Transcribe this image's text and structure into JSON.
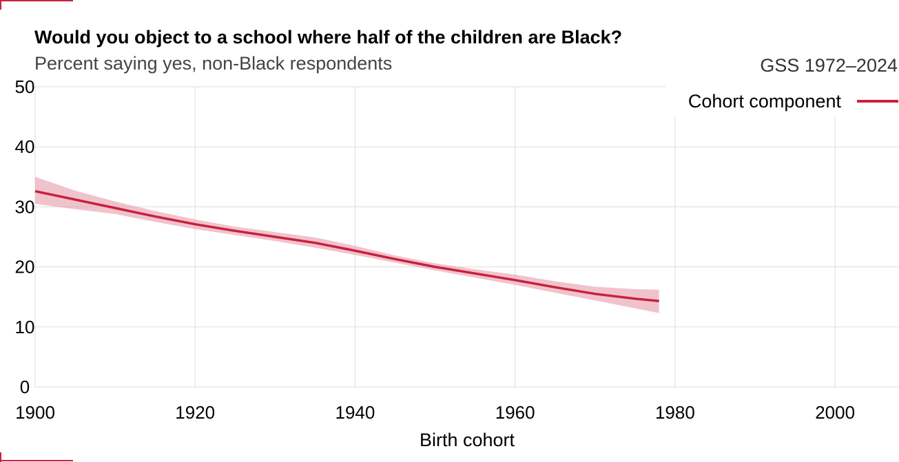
{
  "chart_data": {
    "type": "line",
    "title": "Would you object to a school where half of the children are Black?",
    "subtitle": "Percent saying yes, non-Black respondents",
    "source": "GSS 1972–2024",
    "xlabel": "Birth cohort",
    "ylabel": "",
    "xlim": [
      1900,
      2008
    ],
    "ylim": [
      0,
      50
    ],
    "xticks": [
      1900,
      1920,
      1940,
      1960,
      1980,
      2000
    ],
    "yticks": [
      0,
      10,
      20,
      30,
      40,
      50
    ],
    "grid": true,
    "legend_position": "top-right",
    "series": [
      {
        "name": "Cohort component",
        "color": "#c8203f",
        "band_color": "#e8a3b0",
        "x": [
          1900,
          1905,
          1910,
          1915,
          1920,
          1925,
          1930,
          1935,
          1940,
          1945,
          1950,
          1955,
          1960,
          1965,
          1970,
          1975,
          1978
        ],
        "y": [
          32.6,
          31.2,
          29.8,
          28.4,
          27.1,
          26.0,
          25.0,
          24.0,
          22.7,
          21.3,
          20.0,
          18.9,
          17.8,
          16.6,
          15.5,
          14.7,
          14.3
        ],
        "lower": [
          30.5,
          29.6,
          28.8,
          27.5,
          26.3,
          25.3,
          24.3,
          23.2,
          22.0,
          20.7,
          19.4,
          18.2,
          17.0,
          15.7,
          14.4,
          13.1,
          12.3
        ],
        "upper": [
          35.0,
          32.7,
          30.9,
          29.3,
          27.9,
          26.7,
          25.8,
          24.9,
          23.5,
          21.9,
          20.6,
          19.6,
          18.7,
          17.6,
          16.7,
          16.3,
          16.2
        ]
      }
    ]
  }
}
